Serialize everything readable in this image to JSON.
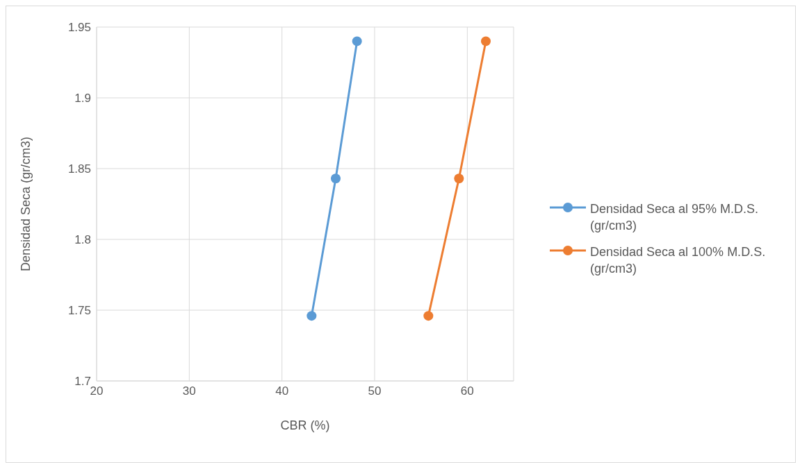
{
  "chart_data": {
    "type": "line",
    "xlabel": "CBR (%)",
    "ylabel": "Densidad Seca (gr/cm3)",
    "series": [
      {
        "name": "Densidad Seca al 95% M.D.S. (gr/cm3)",
        "color": "#5b9bd5",
        "x": [
          43.2,
          45.8,
          48.1
        ],
        "values": [
          1.746,
          1.843,
          1.94
        ]
      },
      {
        "name": "Densidad Seca al 100% M.D.S. (gr/cm3)",
        "color": "#ed7d31",
        "x": [
          55.8,
          59.1,
          62.0
        ],
        "values": [
          1.746,
          1.843,
          1.94
        ]
      }
    ],
    "xlim": [
      20,
      65
    ],
    "xticks": [
      20,
      30,
      40,
      50,
      60
    ],
    "ylim": [
      1.7,
      1.95
    ],
    "yticks": [
      1.7,
      1.75,
      1.8,
      1.85,
      1.9,
      1.95
    ],
    "grid": true,
    "legend": "right",
    "marker": "circle",
    "line_style": "solid"
  }
}
